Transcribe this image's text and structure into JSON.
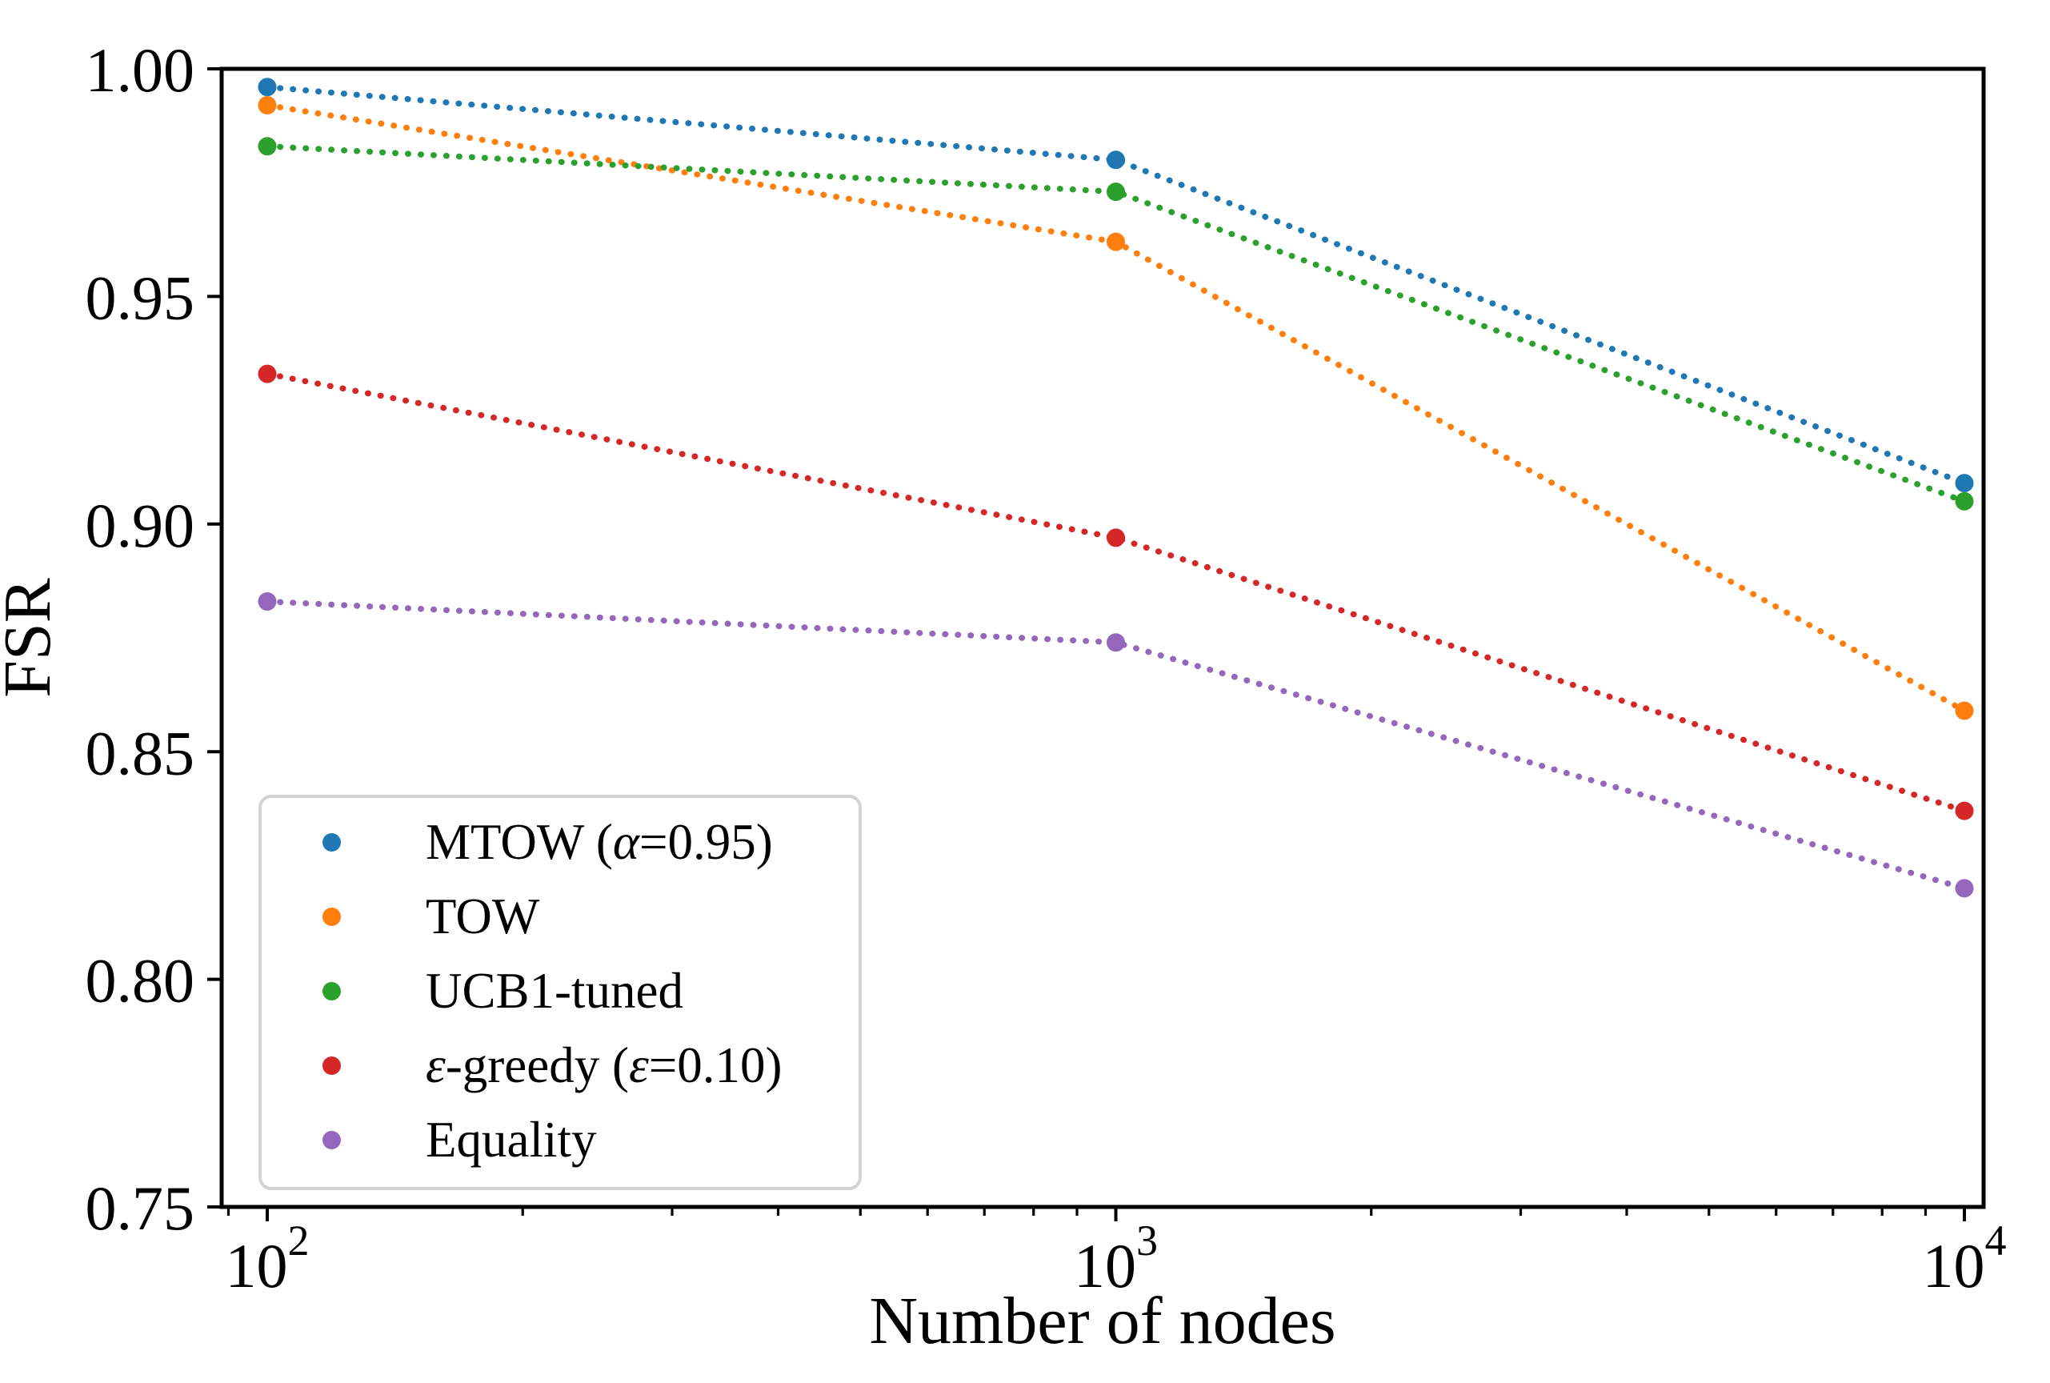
{
  "figure": {
    "background": "#ffffff",
    "text_color": "#000000"
  },
  "chart_data": {
    "type": "line",
    "line_style": "dotted",
    "marker": "circle",
    "grid": false,
    "title": "",
    "xlabel": "Number of nodes",
    "ylabel": "FSR",
    "x_scale": "log",
    "xlim": [
      88,
      10500
    ],
    "ylim": [
      0.75,
      1.0
    ],
    "x": [
      100,
      1000,
      10000
    ],
    "x_ticks": [
      {
        "value": 100,
        "base": "10",
        "exponent": "2"
      },
      {
        "value": 1000,
        "base": "10",
        "exponent": "3"
      },
      {
        "value": 10000,
        "base": "10",
        "exponent": "4"
      }
    ],
    "x_minor_ticks": [
      90,
      200,
      300,
      400,
      500,
      600,
      700,
      800,
      900,
      2000,
      3000,
      4000,
      5000,
      6000,
      7000,
      8000,
      9000
    ],
    "y_ticks": [
      {
        "value": 1.0,
        "label": "1.00"
      },
      {
        "value": 0.95,
        "label": "0.95"
      },
      {
        "value": 0.9,
        "label": "0.90"
      },
      {
        "value": 0.85,
        "label": "0.85"
      },
      {
        "value": 0.8,
        "label": "0.80"
      },
      {
        "value": 0.75,
        "label": "0.75"
      }
    ],
    "series": [
      {
        "name": "MTOW (α=0.95)",
        "color": "#1f77b4",
        "values": [
          0.996,
          0.98,
          0.909
        ]
      },
      {
        "name": "TOW",
        "color": "#ff7f0e",
        "values": [
          0.992,
          0.962,
          0.859
        ]
      },
      {
        "name": "UCB1-tuned",
        "color": "#2ca02c",
        "values": [
          0.983,
          0.973,
          0.905
        ]
      },
      {
        "name": "ε-greedy (ε=0.10)",
        "color": "#d62728",
        "values": [
          0.933,
          0.897,
          0.837
        ]
      },
      {
        "name": "Equality",
        "color": "#9467bd",
        "values": [
          0.883,
          0.874,
          0.82
        ]
      }
    ],
    "legend": {
      "position": "lower-left",
      "border_color": "#d3d3d3",
      "background": "#ffffff"
    }
  }
}
